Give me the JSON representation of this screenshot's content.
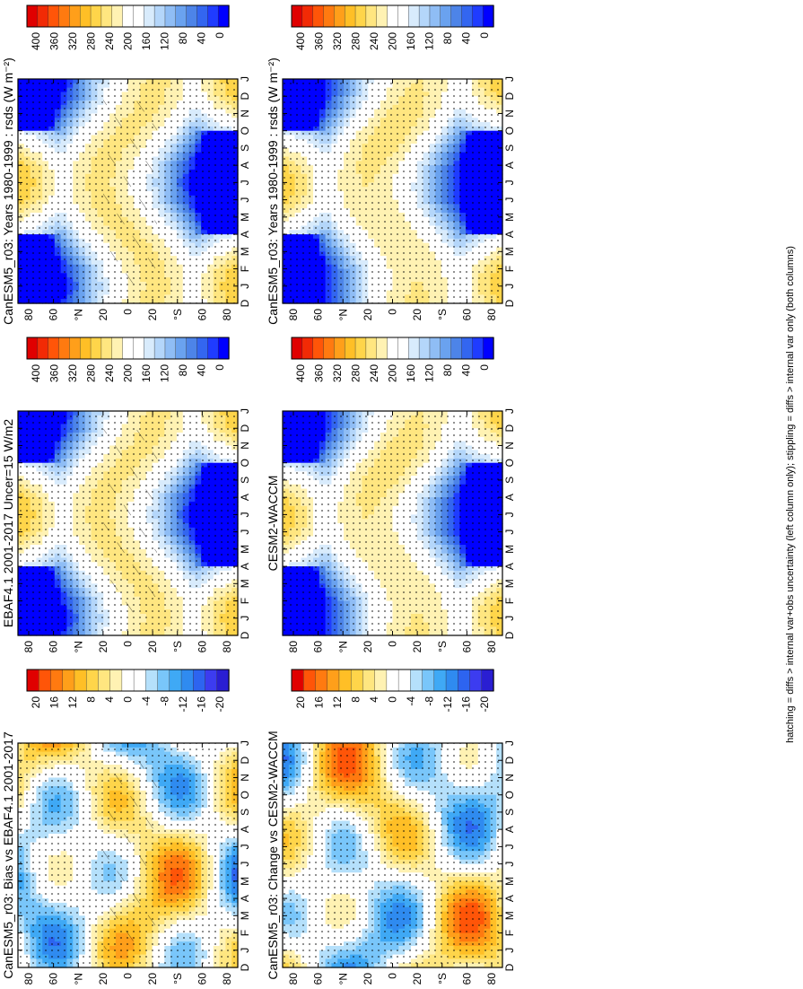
{
  "footnote": "hatching = diffs > internal var+obs uncertainty (left column only); stippling = diffs > internal var only (both columns)",
  "colors": {
    "abs_scale": [
      "#0000ff",
      "#1f3cff",
      "#3366f0",
      "#4d84e8",
      "#6aa2ef",
      "#8fbdf5",
      "#b4d6fa",
      "#d8ebfc",
      "#ffffff",
      "#ffffff",
      "#fff2b3",
      "#ffe680",
      "#ffd54a",
      "#ffbf26",
      "#ff9f1a",
      "#ff7a10",
      "#ff5508",
      "#f22a05",
      "#e00000"
    ],
    "diff_scale": [
      "#2a1ed2",
      "#3c3cf0",
      "#2d64f0",
      "#2f8bf0",
      "#3fa9f5",
      "#79c6fa",
      "#b5e0fb",
      "#ffffff",
      "#ffffff",
      "#fff2b3",
      "#ffe680",
      "#ffd54a",
      "#ffbf26",
      "#ff9f1a",
      "#ff7a10",
      "#ff5508",
      "#e00000"
    ]
  },
  "chart_data": [
    {
      "type": "heatmap",
      "title": "CanESM5_r03: Years 1980-1999 : rsds (W m⁻²)",
      "xlabel": "",
      "ylabel": "",
      "x_ticks": [
        "D",
        "J",
        "F",
        "M",
        "A",
        "M",
        "J",
        "J",
        "A",
        "S",
        "O",
        "N",
        "D",
        "J"
      ],
      "y_ticks": [
        "80",
        "60",
        "°N",
        "20",
        "0",
        "20",
        "°S",
        "60",
        "80"
      ],
      "colorbar_ticks": [
        "400",
        "360",
        "320",
        "280",
        "240",
        "200",
        "160",
        "120",
        "80",
        "40",
        "0"
      ],
      "colorbar_range": [
        0,
        440
      ],
      "hatching": true,
      "stippling": true
    },
    {
      "type": "heatmap",
      "title": "CanESM5_r03: Years 1980-1999 : rsds (W m⁻²)",
      "xlabel": "",
      "ylabel": "",
      "x_ticks": [
        "D",
        "J",
        "F",
        "M",
        "A",
        "M",
        "J",
        "J",
        "A",
        "S",
        "O",
        "N",
        "D",
        "J"
      ],
      "y_ticks": [
        "80",
        "60",
        "°N",
        "20",
        "0",
        "20",
        "°S",
        "60",
        "80"
      ],
      "colorbar_ticks": [
        "400",
        "360",
        "320",
        "280",
        "240",
        "200",
        "160",
        "120",
        "80",
        "40",
        "0"
      ],
      "colorbar_range": [
        0,
        440
      ],
      "hatching": false,
      "stippling": true
    },
    {
      "type": "heatmap",
      "title": "EBAF4.1 2001-2017 Uncer=15 W/m2",
      "xlabel": "",
      "ylabel": "",
      "x_ticks": [
        "D",
        "J",
        "F",
        "M",
        "A",
        "M",
        "J",
        "J",
        "A",
        "S",
        "O",
        "N",
        "D",
        "J"
      ],
      "y_ticks": [
        "80",
        "60",
        "°N",
        "20",
        "0",
        "20",
        "°S",
        "60",
        "80"
      ],
      "colorbar_ticks": [
        "400",
        "360",
        "320",
        "280",
        "240",
        "200",
        "160",
        "120",
        "80",
        "40",
        "0"
      ],
      "colorbar_range": [
        0,
        440
      ],
      "hatching": true,
      "stippling": true
    },
    {
      "type": "heatmap",
      "title": "CESM2-WACCM",
      "xlabel": "",
      "ylabel": "",
      "x_ticks": [
        "D",
        "J",
        "F",
        "M",
        "A",
        "M",
        "J",
        "J",
        "A",
        "S",
        "O",
        "N",
        "D",
        "J"
      ],
      "y_ticks": [
        "80",
        "60",
        "°N",
        "20",
        "0",
        "20",
        "°S",
        "60",
        "80"
      ],
      "colorbar_ticks": [
        "400",
        "360",
        "320",
        "280",
        "240",
        "200",
        "160",
        "120",
        "80",
        "40",
        "0"
      ],
      "colorbar_range": [
        0,
        440
      ],
      "hatching": false,
      "stippling": true
    },
    {
      "type": "heatmap",
      "title": "CanESM5_r03: Bias vs EBAF4.1 2001-2017",
      "xlabel": "",
      "ylabel": "",
      "x_ticks": [
        "D",
        "J",
        "F",
        "M",
        "A",
        "M",
        "J",
        "J",
        "A",
        "S",
        "O",
        "N",
        "D",
        "J"
      ],
      "y_ticks": [
        "80",
        "60",
        "°N",
        "20",
        "0",
        "20",
        "°S",
        "60",
        "80"
      ],
      "colorbar_ticks": [
        "20",
        "16",
        "12",
        "8",
        "4",
        "0",
        "-4",
        "-8",
        "-12",
        "-16",
        "-20"
      ],
      "colorbar_range": [
        -22,
        22
      ],
      "hatching": true,
      "stippling": true
    },
    {
      "type": "heatmap",
      "title": "CanESM5_r03: Change vs CESM2-WACCM",
      "xlabel": "",
      "ylabel": "",
      "x_ticks": [
        "D",
        "J",
        "F",
        "M",
        "A",
        "M",
        "J",
        "J",
        "A",
        "S",
        "O",
        "N",
        "D",
        "J"
      ],
      "y_ticks": [
        "80",
        "60",
        "°N",
        "20",
        "0",
        "20",
        "°S",
        "60",
        "80"
      ],
      "colorbar_ticks": [
        "20",
        "16",
        "12",
        "8",
        "4",
        "0",
        "-4",
        "-8",
        "-12",
        "-16",
        "-20"
      ],
      "colorbar_range": [
        -22,
        22
      ],
      "hatching": false,
      "stippling": true
    }
  ]
}
